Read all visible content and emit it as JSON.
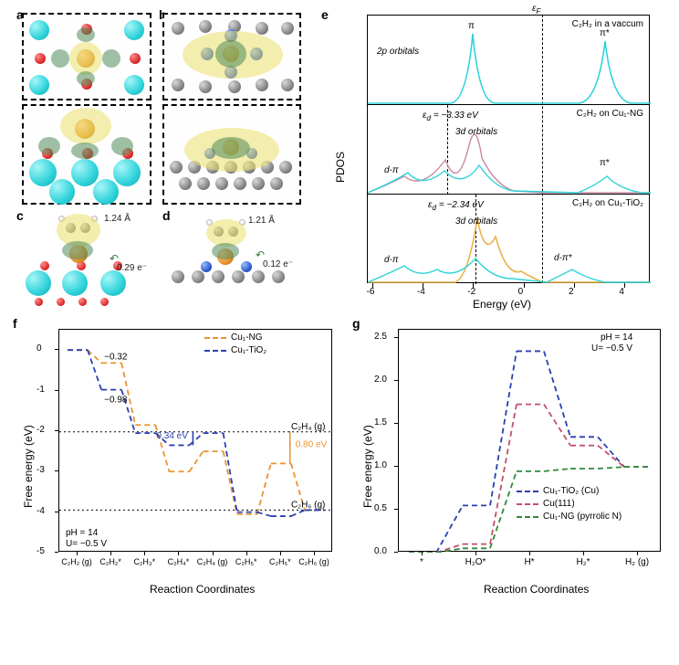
{
  "colors": {
    "cu1_ng": "#e8932f",
    "cu1_tio2": "#2a3fb0",
    "cu111": "#c0506a",
    "cu1_ng_pyrrolic": "#2f8a3a",
    "pdos_c2h2": "#2fd3da",
    "pdos_d_ng": "#c68aa0",
    "pdos_d_tio2": "#e8b44a",
    "dashed_ref": "#000000"
  },
  "panel_labels": {
    "a": "a",
    "b": "b",
    "c": "c",
    "d": "d",
    "e": "e",
    "f": "f",
    "g": "g"
  },
  "panel_c": {
    "bond_len": "1.24 Å",
    "charge": "0.29 e⁻"
  },
  "panel_d": {
    "bond_len": "1.21 Å",
    "charge": "0.12 e⁻"
  },
  "pdos": {
    "ylabel": "PDOS",
    "xlabel": "Energy (eV)",
    "ef_label": "ε_F",
    "x_ticks": [
      -6,
      -4,
      -2,
      0,
      2,
      4
    ],
    "panels": [
      {
        "title": "C₂H₂ in a vaccum",
        "labels": {
          "twop": "2p orbitals",
          "pi": "π",
          "pistar": "π*"
        }
      },
      {
        "title": "C₂H₂ on Cu₁-NG",
        "ed": "ε_d = −3.33 eV",
        "labels": {
          "threed": "3d orbitals",
          "dpi": "d-π",
          "pistar": "π*"
        }
      },
      {
        "title": "C₂H₂ on Cu₁-TiO₂",
        "ed": "ε_d = −2.34 eV",
        "labels": {
          "threed": "3d orbitals",
          "dpi": "d-π",
          "dpistar": "d-π*"
        }
      }
    ]
  },
  "plot_f": {
    "ylabel": "Free energy (eV)",
    "xlabel": "Reaction Coordinates",
    "conditions": {
      "ph": "pH = 14",
      "u": "U= −0.5 V"
    },
    "legend": [
      {
        "label": "Cu₁-NG",
        "colorKey": "cu1_ng"
      },
      {
        "label": "Cu₁-TiO₂",
        "colorKey": "cu1_tio2"
      }
    ],
    "y_range": [
      -5,
      0.5
    ],
    "y_tick_step": 1,
    "x_categories": [
      "C₂H₂ (g)",
      "C₂H₂*",
      "C₂H₃*",
      "C₂H₄*",
      "C₂H₄ (g)",
      "C₂H₅*",
      "C₂H₅*",
      "C₂H₆ (g)"
    ],
    "series": {
      "cu1_ng": [
        0.0,
        -0.32,
        -1.85,
        -3.0,
        -2.5,
        -4.05,
        -2.8,
        -3.95
      ],
      "cu1_tio2": [
        0.0,
        -0.98,
        -2.05,
        -2.35,
        -2.05,
        -4.0,
        -4.1,
        -3.95
      ]
    },
    "annotations": {
      "a1": "−0.32",
      "a2": "−0.98",
      "barrier_tio2": "0.34 eV",
      "barrier_ng": "0.80 eV",
      "c2h4": "C₂H₄ (g)",
      "c2h6": "C₂H₆ (g)"
    },
    "ref_lines": [
      -2.02,
      -3.95
    ]
  },
  "plot_g": {
    "ylabel": "Free energy (eV)",
    "xlabel": "Reaction Coordinates",
    "conditions": {
      "ph": "pH = 14",
      "u": "U= −0.5 V"
    },
    "y_range": [
      0,
      2.6
    ],
    "y_ticks": [
      0,
      0.5,
      1.0,
      1.5,
      2.0,
      2.5
    ],
    "x_categories": [
      "*",
      "H₂O*",
      "H*",
      "H₂*",
      "H₂ (g)"
    ],
    "legend": [
      {
        "label": "Cu₁-TiO₂ (Cu)",
        "colorKey": "cu1_tio2"
      },
      {
        "label": "Cu(111)",
        "colorKey": "cu111"
      },
      {
        "label": "Cu₁-NG (pyrrolic N)",
        "colorKey": "cu1_ng_pyrrolic"
      }
    ],
    "series": {
      "cu1_tio2": [
        0.0,
        0.55,
        2.35,
        1.35,
        1.0
      ],
      "cu111": [
        0.0,
        0.1,
        1.73,
        1.25,
        1.0
      ],
      "cu1_ng_pyrrolic": [
        0.0,
        0.05,
        0.95,
        0.98,
        1.0
      ]
    }
  }
}
